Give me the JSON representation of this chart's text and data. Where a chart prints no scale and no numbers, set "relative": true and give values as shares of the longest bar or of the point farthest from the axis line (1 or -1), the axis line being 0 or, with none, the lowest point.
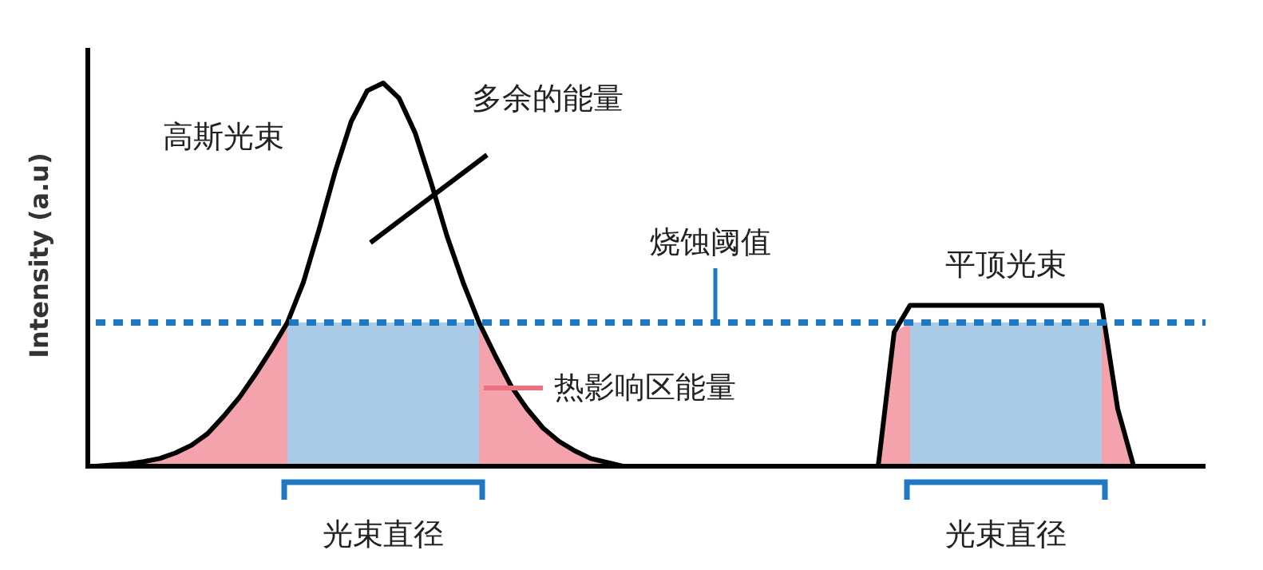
{
  "chart_data": {
    "type": "line",
    "relative": true,
    "ylabel": "Intensity (a.u)",
    "categories": [
      null,
      null,
      null,
      null,
      null,
      null,
      null,
      null,
      null,
      null,
      null,
      null,
      null,
      null,
      null,
      null,
      null,
      null,
      null,
      null,
      null,
      null,
      null,
      null,
      null,
      null,
      null,
      null,
      null,
      null,
      null,
      null,
      null,
      null,
      null,
      null,
      null,
      null,
      null,
      null,
      null,
      null,
      null,
      null,
      null,
      null,
      null,
      null,
      null,
      null,
      null,
      null,
      null,
      null,
      null,
      null,
      null,
      null,
      null,
      null,
      null,
      null,
      null,
      null,
      null,
      null,
      null,
      null,
      null,
      null
    ],
    "series": [
      {
        "type": "area",
        "color": "#f4a3ad",
        "values": [
          0,
          0.003,
          0.006,
          0.012,
          0.02,
          0.035,
          0.055,
          0.085,
          0.13,
          0.18,
          0.24,
          0.305,
          0.375,
          null,
          null,
          null,
          null,
          null,
          null,
          null,
          null,
          null,
          null,
          null,
          0.375,
          0.29,
          0.21,
          0.15,
          0.1,
          0.065,
          0.04,
          0.02,
          0.01,
          0,
          null,
          null,
          null,
          null,
          null,
          null,
          null,
          null,
          null,
          null,
          null,
          null,
          null,
          null,
          null,
          0,
          0.35,
          0.375,
          null,
          null,
          null,
          null,
          null,
          null,
          null,
          null,
          null,
          null,
          null,
          0.375,
          0.15,
          0,
          null,
          null,
          null,
          null
        ]
      },
      {
        "type": "area",
        "color": "#a9cbe6",
        "values": [
          null,
          null,
          null,
          null,
          null,
          null,
          null,
          null,
          null,
          null,
          null,
          null,
          0.375,
          0.375,
          0.375,
          0.375,
          0.375,
          0.375,
          0.375,
          0.375,
          0.375,
          0.375,
          0.375,
          0.375,
          0.375,
          null,
          null,
          null,
          null,
          null,
          null,
          null,
          null,
          null,
          null,
          null,
          null,
          null,
          null,
          null,
          null,
          null,
          null,
          null,
          null,
          null,
          null,
          null,
          null,
          null,
          null,
          0.375,
          0.375,
          0.375,
          0.375,
          0.375,
          0.375,
          0.375,
          0.375,
          0.375,
          0.375,
          0.375,
          0.375,
          0.375,
          null,
          null,
          null,
          null,
          null,
          null
        ]
      },
      {
        "type": "line",
        "color": "#000000",
        "values": [
          0,
          0.003,
          0.006,
          0.012,
          0.02,
          0.035,
          0.055,
          0.085,
          0.13,
          0.18,
          0.24,
          0.305,
          0.375,
          0.48,
          0.62,
          0.77,
          0.9,
          0.98,
          1,
          0.96,
          0.87,
          0.74,
          0.6,
          0.48,
          0.375,
          0.29,
          0.21,
          0.15,
          0.1,
          0.065,
          0.04,
          0.02,
          0.01,
          0,
          null,
          null,
          null,
          null,
          null,
          null,
          null,
          null,
          null,
          null,
          null,
          null,
          null,
          null,
          null,
          null,
          null,
          null,
          null,
          null,
          null,
          null,
          null,
          null,
          null,
          null,
          null,
          null,
          null,
          null,
          null,
          null,
          null,
          null,
          null,
          null
        ]
      },
      {
        "type": "line",
        "color": "#000000",
        "values": [
          null,
          null,
          null,
          null,
          null,
          null,
          null,
          null,
          null,
          null,
          null,
          null,
          null,
          null,
          null,
          null,
          null,
          null,
          null,
          null,
          null,
          null,
          null,
          null,
          null,
          null,
          null,
          null,
          null,
          null,
          null,
          null,
          null,
          null,
          null,
          null,
          null,
          null,
          null,
          null,
          null,
          null,
          null,
          null,
          null,
          null,
          null,
          null,
          null,
          0,
          0.35,
          0.42,
          0.42,
          0.42,
          0.42,
          0.42,
          0.42,
          0.42,
          0.42,
          0.42,
          0.42,
          0.42,
          0.42,
          0.42,
          0.15,
          0,
          null,
          null,
          null,
          null
        ]
      }
    ],
    "ref_lines": [
      {
        "axis": "y",
        "value": 0.375,
        "label": "烧蚀阈值",
        "color": "#1f78c1",
        "line_style": "dotted"
      }
    ],
    "annotations": [
      "高斯光束",
      "多余的能量",
      "热影响区能量",
      "平顶光束",
      "光束直径",
      "光束直径"
    ]
  }
}
